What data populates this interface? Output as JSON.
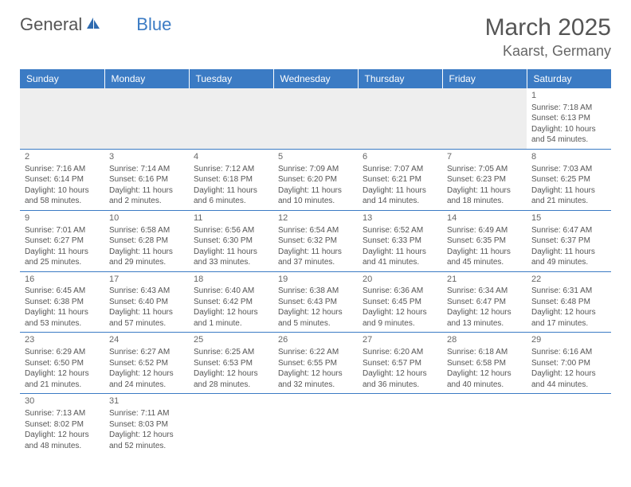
{
  "logo": {
    "part1": "General",
    "part2": "Blue"
  },
  "title": "March 2025",
  "location": "Kaarst, Germany",
  "colors": {
    "header_bg": "#3b7bc4",
    "header_text": "#ffffff",
    "border": "#3b7bc4",
    "text": "#555555",
    "empty_bg": "#eeeeee"
  },
  "day_headers": [
    "Sunday",
    "Monday",
    "Tuesday",
    "Wednesday",
    "Thursday",
    "Friday",
    "Saturday"
  ],
  "weeks": [
    [
      null,
      null,
      null,
      null,
      null,
      null,
      {
        "d": "1",
        "sr": "7:18 AM",
        "ss": "6:13 PM",
        "dl": "10 hours and 54 minutes."
      }
    ],
    [
      {
        "d": "2",
        "sr": "7:16 AM",
        "ss": "6:14 PM",
        "dl": "10 hours and 58 minutes."
      },
      {
        "d": "3",
        "sr": "7:14 AM",
        "ss": "6:16 PM",
        "dl": "11 hours and 2 minutes."
      },
      {
        "d": "4",
        "sr": "7:12 AM",
        "ss": "6:18 PM",
        "dl": "11 hours and 6 minutes."
      },
      {
        "d": "5",
        "sr": "7:09 AM",
        "ss": "6:20 PM",
        "dl": "11 hours and 10 minutes."
      },
      {
        "d": "6",
        "sr": "7:07 AM",
        "ss": "6:21 PM",
        "dl": "11 hours and 14 minutes."
      },
      {
        "d": "7",
        "sr": "7:05 AM",
        "ss": "6:23 PM",
        "dl": "11 hours and 18 minutes."
      },
      {
        "d": "8",
        "sr": "7:03 AM",
        "ss": "6:25 PM",
        "dl": "11 hours and 21 minutes."
      }
    ],
    [
      {
        "d": "9",
        "sr": "7:01 AM",
        "ss": "6:27 PM",
        "dl": "11 hours and 25 minutes."
      },
      {
        "d": "10",
        "sr": "6:58 AM",
        "ss": "6:28 PM",
        "dl": "11 hours and 29 minutes."
      },
      {
        "d": "11",
        "sr": "6:56 AM",
        "ss": "6:30 PM",
        "dl": "11 hours and 33 minutes."
      },
      {
        "d": "12",
        "sr": "6:54 AM",
        "ss": "6:32 PM",
        "dl": "11 hours and 37 minutes."
      },
      {
        "d": "13",
        "sr": "6:52 AM",
        "ss": "6:33 PM",
        "dl": "11 hours and 41 minutes."
      },
      {
        "d": "14",
        "sr": "6:49 AM",
        "ss": "6:35 PM",
        "dl": "11 hours and 45 minutes."
      },
      {
        "d": "15",
        "sr": "6:47 AM",
        "ss": "6:37 PM",
        "dl": "11 hours and 49 minutes."
      }
    ],
    [
      {
        "d": "16",
        "sr": "6:45 AM",
        "ss": "6:38 PM",
        "dl": "11 hours and 53 minutes."
      },
      {
        "d": "17",
        "sr": "6:43 AM",
        "ss": "6:40 PM",
        "dl": "11 hours and 57 minutes."
      },
      {
        "d": "18",
        "sr": "6:40 AM",
        "ss": "6:42 PM",
        "dl": "12 hours and 1 minute."
      },
      {
        "d": "19",
        "sr": "6:38 AM",
        "ss": "6:43 PM",
        "dl": "12 hours and 5 minutes."
      },
      {
        "d": "20",
        "sr": "6:36 AM",
        "ss": "6:45 PM",
        "dl": "12 hours and 9 minutes."
      },
      {
        "d": "21",
        "sr": "6:34 AM",
        "ss": "6:47 PM",
        "dl": "12 hours and 13 minutes."
      },
      {
        "d": "22",
        "sr": "6:31 AM",
        "ss": "6:48 PM",
        "dl": "12 hours and 17 minutes."
      }
    ],
    [
      {
        "d": "23",
        "sr": "6:29 AM",
        "ss": "6:50 PM",
        "dl": "12 hours and 21 minutes."
      },
      {
        "d": "24",
        "sr": "6:27 AM",
        "ss": "6:52 PM",
        "dl": "12 hours and 24 minutes."
      },
      {
        "d": "25",
        "sr": "6:25 AM",
        "ss": "6:53 PM",
        "dl": "12 hours and 28 minutes."
      },
      {
        "d": "26",
        "sr": "6:22 AM",
        "ss": "6:55 PM",
        "dl": "12 hours and 32 minutes."
      },
      {
        "d": "27",
        "sr": "6:20 AM",
        "ss": "6:57 PM",
        "dl": "12 hours and 36 minutes."
      },
      {
        "d": "28",
        "sr": "6:18 AM",
        "ss": "6:58 PM",
        "dl": "12 hours and 40 minutes."
      },
      {
        "d": "29",
        "sr": "6:16 AM",
        "ss": "7:00 PM",
        "dl": "12 hours and 44 minutes."
      }
    ],
    [
      {
        "d": "30",
        "sr": "7:13 AM",
        "ss": "8:02 PM",
        "dl": "12 hours and 48 minutes."
      },
      {
        "d": "31",
        "sr": "7:11 AM",
        "ss": "8:03 PM",
        "dl": "12 hours and 52 minutes."
      },
      null,
      null,
      null,
      null,
      null
    ]
  ],
  "labels": {
    "sunrise": "Sunrise: ",
    "sunset": "Sunset: ",
    "daylight": "Daylight: "
  }
}
